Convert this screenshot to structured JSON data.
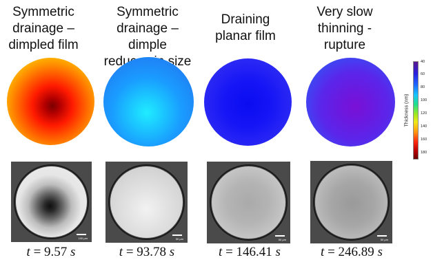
{
  "panels": [
    {
      "title_lines": [
        "Symmetric",
        "drainage –",
        "dimpled film"
      ],
      "time_value": "9.57",
      "scale_label": "100 µm",
      "colors": {
        "outer": "#ffd400",
        "mid": "#ff5a00",
        "core": "#9a0000"
      }
    },
    {
      "title_lines": [
        "Symmetric",
        "drainage – dimple",
        "reduces in size"
      ],
      "time_value": "93.78",
      "scale_label": "50 µm",
      "colors": {
        "outer": "#1e90ff",
        "mid": "#1aa8ff",
        "core": "#22e5ff"
      }
    },
    {
      "title_lines": [
        "Draining",
        "planar film"
      ],
      "time_value": "146.41",
      "scale_label": "50 µm",
      "colors": {
        "outer": "#3a3af0",
        "mid": "#2222ff",
        "core": "#1010f0"
      }
    },
    {
      "title_lines": [
        "Very slow",
        "thinning -",
        "rupture"
      ],
      "time_value": "246.89",
      "scale_label": "50 µm",
      "colors": {
        "outer": "#2a6cff",
        "mid": "#5a2ae8",
        "core": "#6a1ad8"
      }
    }
  ],
  "time_prefix": "t",
  "time_eq": "=",
  "time_unit": "s",
  "colorbar": {
    "label": "Thickness (nm)",
    "ticks": [
      "40",
      "60",
      "80",
      "100",
      "120",
      "140",
      "160",
      "180"
    ]
  }
}
